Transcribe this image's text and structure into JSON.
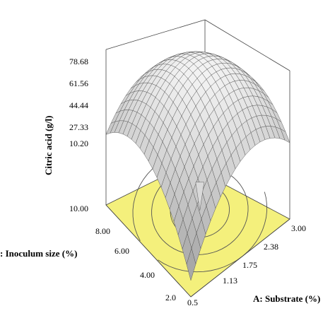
{
  "chart_data": {
    "type": "surface3d",
    "zlabel": "Citric acid (g/l)",
    "xlabel": "A: Substrate (%)",
    "ylabel": ": Inoculum size (%)",
    "z_ticks": [
      "78.68",
      "61.56",
      "44.44",
      "27.33",
      "10.20"
    ],
    "x_ticks": [
      "0.5",
      "1.13",
      "1.75",
      "2.38",
      "3.00"
    ],
    "y_ticks": [
      "2.0",
      "4.00",
      "6.00",
      "8.00",
      "10.00"
    ],
    "zlim": [
      10.2,
      78.68
    ],
    "xlim": [
      0.5,
      3.0
    ],
    "ylim": [
      2.0,
      10.0
    ],
    "surface_max": 78.68,
    "surface_min": 10.2,
    "floor_color": "#f4f07c",
    "surface_color": "#d9d9d9",
    "mesh_color": "#555555",
    "contour_count": 3
  }
}
